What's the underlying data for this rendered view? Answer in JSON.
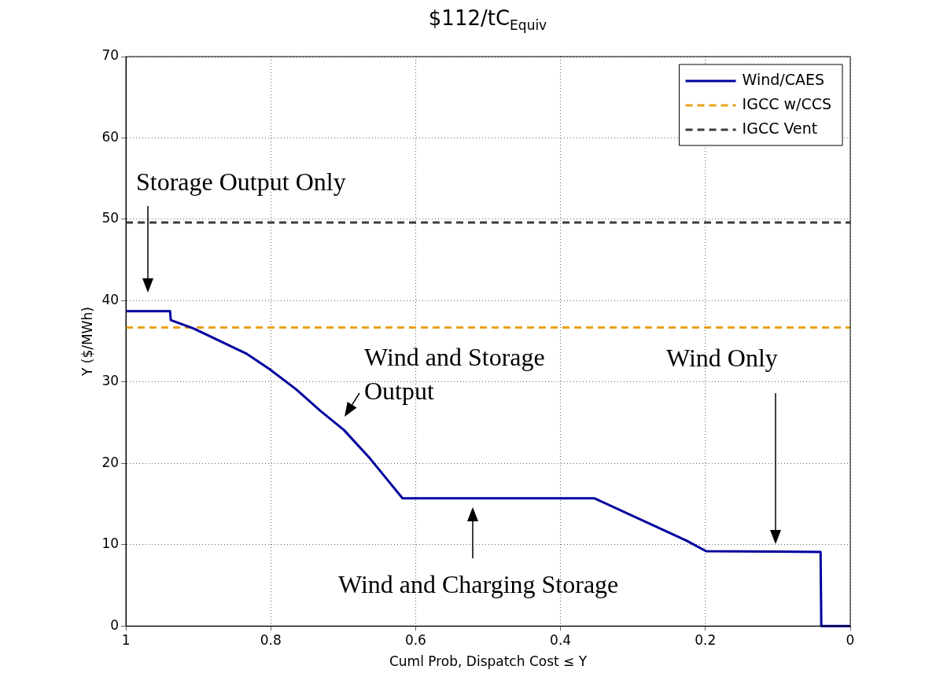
{
  "chart_data": {
    "type": "line",
    "title": "$112/tC$_{Equiv}$",
    "xlabel": "Cuml Prob, Dispatch Cost ≤ Y",
    "ylabel": "Y ($/MWh)",
    "xlim": [
      1,
      0
    ],
    "xticks": [
      1,
      0.8,
      0.6,
      0.4,
      0.2,
      0
    ],
    "ylim": [
      0,
      70
    ],
    "yticks": [
      0,
      10,
      20,
      30,
      40,
      50,
      60,
      70
    ],
    "grid": true,
    "legend": "top right",
    "marker": "none",
    "series": [
      {
        "name": "Wind/CAES",
        "color": "#00009e",
        "line_style": "solid",
        "x": [
          1,
          0.939,
          0.938,
          0.907,
          0.867,
          0.834,
          0.802,
          0.765,
          0.732,
          0.699,
          0.663,
          0.618,
          0.353,
          0.226,
          0.199,
          0.041,
          0.04,
          0
        ],
        "values": [
          38.7,
          38.7,
          37.6,
          36.6,
          34.9,
          33.5,
          31.6,
          29.1,
          26.5,
          24.1,
          20.6,
          15.7,
          15.7,
          10.5,
          9.2,
          9.1,
          0,
          0
        ]
      },
      {
        "name": "IGCC w/CCS",
        "color": "#e8a317",
        "line_style": "dashed",
        "x": [
          1,
          0
        ],
        "values": [
          36.7,
          36.7
        ]
      },
      {
        "name": "IGCC Vent",
        "color": "#3c3c3c",
        "line_style": "dashed",
        "x": [
          1,
          0
        ],
        "values": [
          49.6,
          49.6
        ]
      }
    ],
    "annotations": [
      "Storage Output Only",
      "Wind and Storage Output",
      "Wind Only",
      "Wind and Charging Storage"
    ]
  }
}
